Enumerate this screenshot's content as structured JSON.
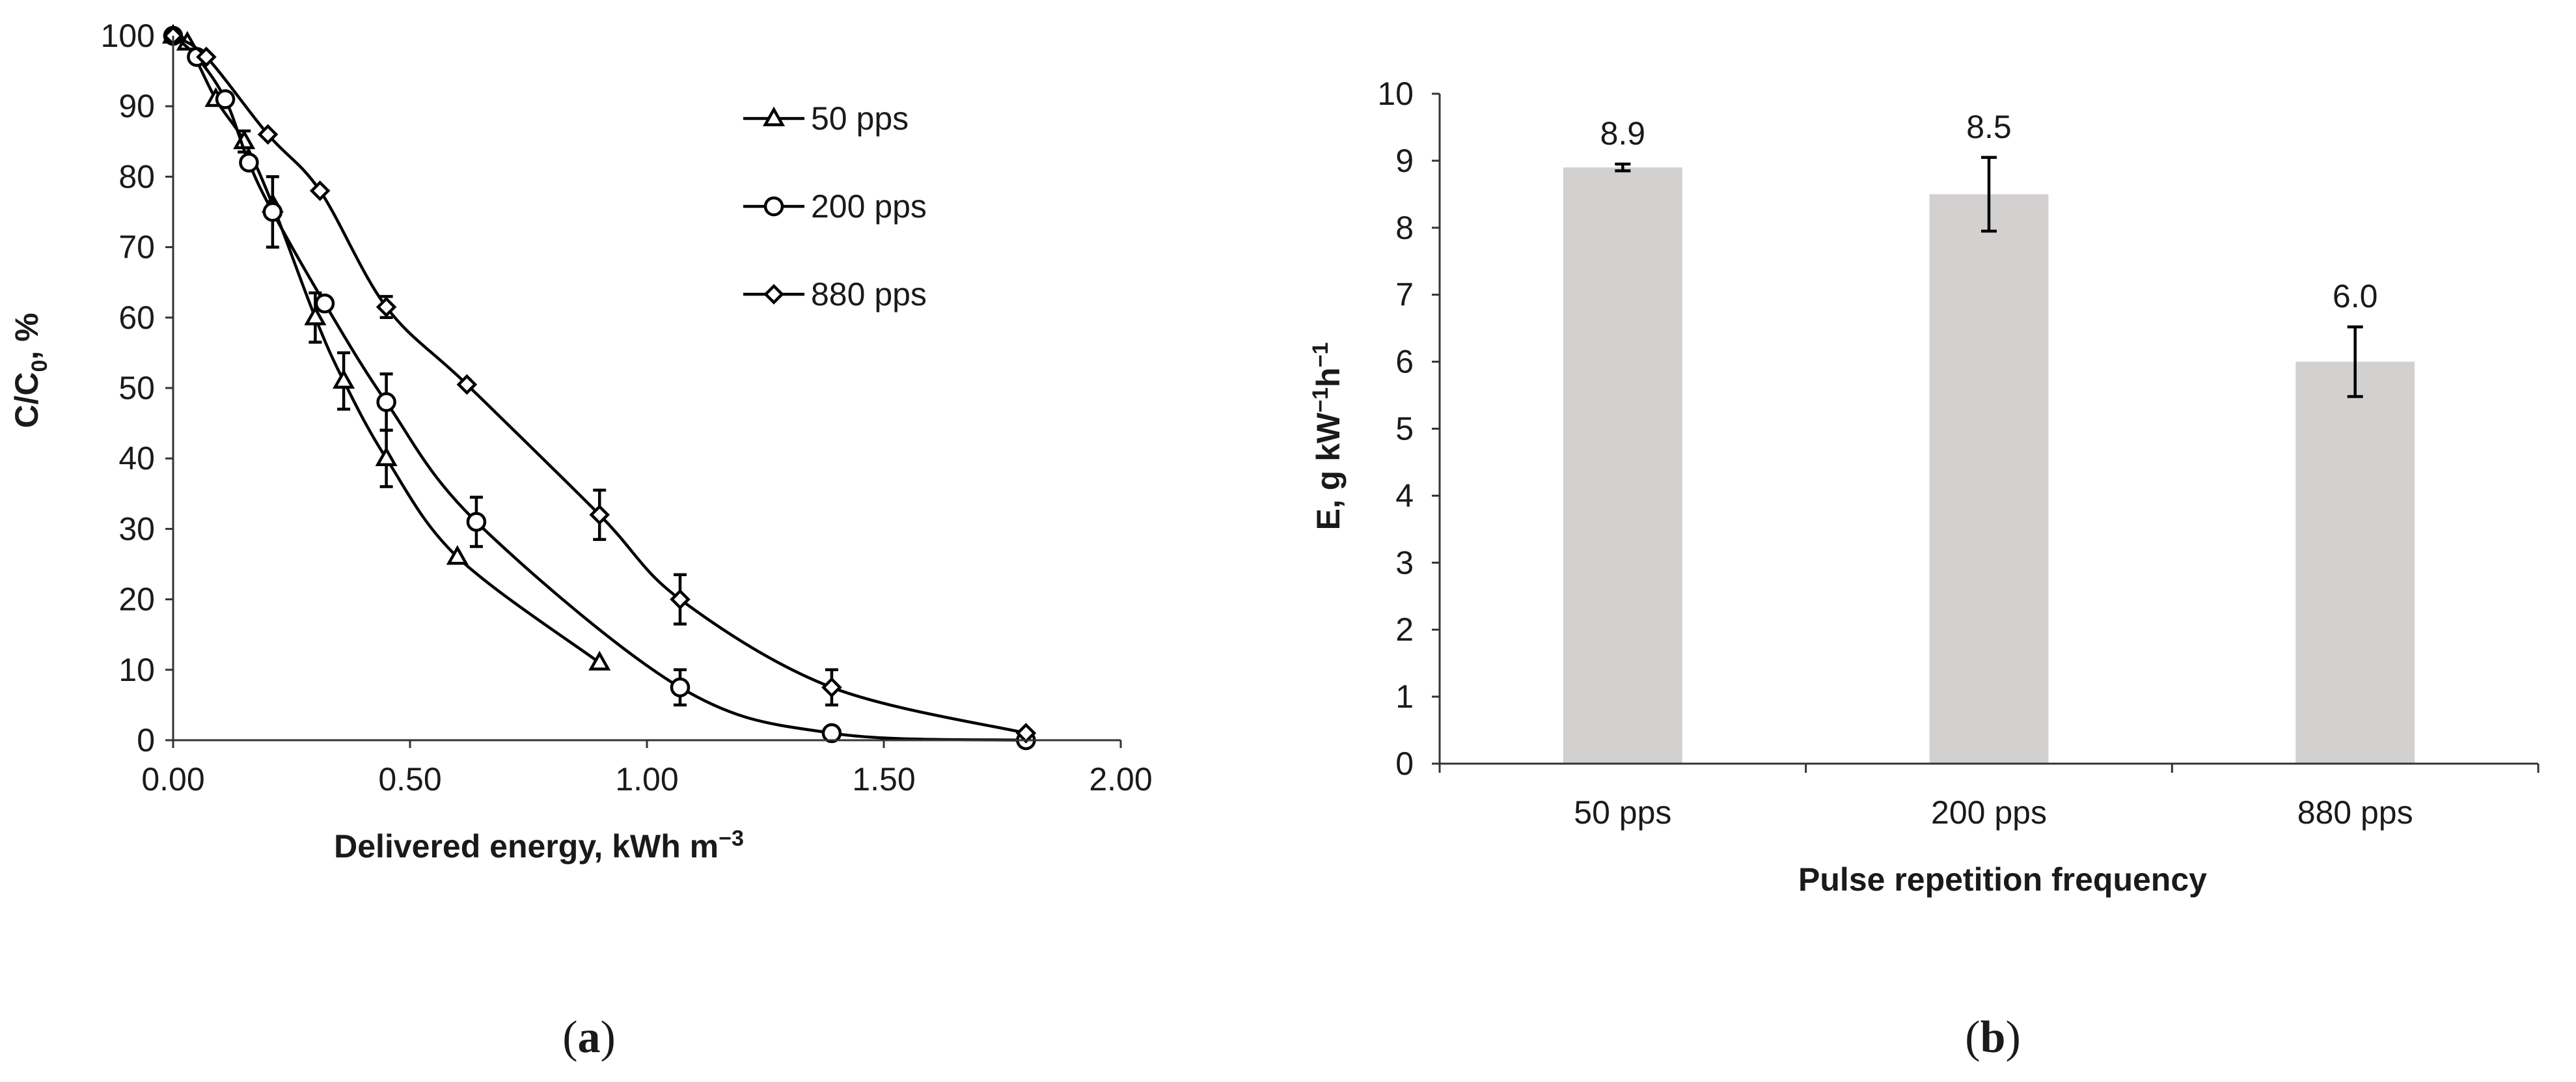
{
  "chart_data": [
    {
      "type": "line",
      "panel_label_pre": "(",
      "panel_label": "a",
      "panel_label_post": ")",
      "xlabel": "Delivered energy, kWh m",
      "xlabel_sup": "−3",
      "ylabel": "C/C",
      "ylabel_sub": "0",
      "ylabel_suffix": ", %",
      "xlim": [
        0,
        2
      ],
      "ylim": [
        0,
        100
      ],
      "x_ticks": [
        "0.00",
        "0.50",
        "1.00",
        "1.50",
        "2.00"
      ],
      "y_ticks": [
        "0",
        "10",
        "20",
        "30",
        "40",
        "50",
        "60",
        "70",
        "80",
        "90",
        "100"
      ],
      "legend_position": "top-right",
      "series": [
        {
          "name": "50 pps",
          "marker": "triangle",
          "x": [
            0,
            0.03,
            0.09,
            0.15,
            0.21,
            0.3,
            0.36,
            0.45,
            0.6,
            0.9
          ],
          "y": [
            100,
            99,
            91,
            85,
            76,
            60,
            51,
            40,
            26,
            11
          ],
          "err": [
            0,
            0,
            0,
            1.5,
            0,
            3.5,
            4,
            4,
            0,
            0
          ]
        },
        {
          "name": "200 pps",
          "marker": "circle",
          "x": [
            0,
            0.05,
            0.11,
            0.16,
            0.21,
            0.32,
            0.45,
            0.64,
            1.07,
            1.39,
            1.8
          ],
          "y": [
            100,
            97,
            91,
            82,
            75,
            62,
            48,
            31,
            7.5,
            1,
            0
          ],
          "err": [
            0,
            0,
            0,
            0,
            5,
            0,
            4,
            3.5,
            2.5,
            0,
            0
          ]
        },
        {
          "name": "880 pps",
          "marker": "diamond",
          "x": [
            0,
            0.07,
            0.2,
            0.31,
            0.45,
            0.62,
            0.9,
            1.07,
            1.39,
            1.8
          ],
          "y": [
            100,
            97,
            86,
            78,
            61.5,
            50.5,
            32,
            20,
            7.5,
            1
          ],
          "err": [
            0,
            0,
            0,
            0,
            1.5,
            0,
            3.5,
            3.5,
            2.5,
            0
          ]
        }
      ]
    },
    {
      "type": "bar",
      "panel_label_pre": "(",
      "panel_label": "b",
      "panel_label_post": ")",
      "xlabel": "Pulse repetition frequency",
      "ylabel_pre": "E, g kW",
      "ylabel_sup1": "−1",
      "ylabel_mid": "h",
      "ylabel_sup2": "−1",
      "ylim": [
        0,
        10
      ],
      "y_ticks": [
        "0",
        "1",
        "2",
        "3",
        "4",
        "5",
        "6",
        "7",
        "8",
        "9",
        "10"
      ],
      "categories": [
        "50 pps",
        "200 pps",
        "880 pps"
      ],
      "values": [
        8.9,
        8.5,
        6.0
      ],
      "value_labels": [
        "8.9",
        "8.5",
        "6.0"
      ],
      "errors": [
        0.05,
        0.55,
        0.52
      ],
      "bar_color": "#d3d0d0"
    }
  ]
}
